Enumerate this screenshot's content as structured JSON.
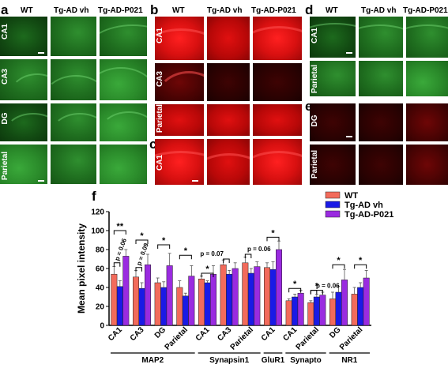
{
  "panels": {
    "a": {
      "label": "a",
      "columns": [
        "WT",
        "Tg-AD vh",
        "Tg-AD-P021"
      ],
      "rows": [
        "CA1",
        "CA3",
        "DG",
        "Parietal"
      ]
    },
    "b": {
      "label": "b",
      "columns": [
        "WT",
        "Tg-AD vh",
        "Tg-AD-P021"
      ],
      "rows": [
        "CA1",
        "CA3",
        "Parietal"
      ]
    },
    "c": {
      "label": "c",
      "rows": [
        "CA1"
      ]
    },
    "d": {
      "label": "d",
      "columns": [
        "WT",
        "Tg-AD vh",
        "Tg-AD-P021"
      ],
      "rows": [
        "CA1",
        "Parietal"
      ]
    },
    "e": {
      "label": "e",
      "rows": [
        "DG",
        "Parietal"
      ]
    },
    "f": {
      "label": "f"
    }
  },
  "colors": {
    "wt": "#f26b5b",
    "vh": "#1a1ae6",
    "p021": "#9a2be0"
  },
  "chart_data": {
    "type": "bar",
    "ylabel": "Mean pixel intensity",
    "ylim": [
      0,
      120
    ],
    "yticks": [
      0,
      20,
      40,
      60,
      80,
      100,
      120
    ],
    "legend": [
      "WT",
      "Tg-AD vh",
      "Tg-AD-P021"
    ],
    "legend_position": "top-right",
    "categories": [
      "CA1",
      "CA3",
      "DG",
      "Parietal",
      "CA1",
      "CA3",
      "Parietal",
      "CA1",
      "CA1",
      "Parietal",
      "DG",
      "Parietal"
    ],
    "groups": [
      {
        "label": "MAP2",
        "start": 0,
        "end": 3
      },
      {
        "label": "Synapsin1",
        "start": 4,
        "end": 6
      },
      {
        "label": "GluR1",
        "start": 7,
        "end": 7
      },
      {
        "label": "Synapto",
        "start": 8,
        "end": 9
      },
      {
        "label": "NR1",
        "start": 10,
        "end": 11
      }
    ],
    "series": [
      {
        "name": "WT",
        "values": [
          54,
          51,
          45,
          40,
          49,
          64,
          66,
          61,
          26,
          24,
          28,
          33
        ],
        "errors": [
          8,
          7,
          5,
          7,
          3,
          5,
          6,
          5,
          2,
          2,
          7,
          7
        ]
      },
      {
        "name": "Tg-AD vh",
        "values": [
          41,
          39,
          40,
          31,
          45,
          54,
          55,
          59,
          30,
          30,
          35,
          40
        ],
        "errors": [
          6,
          6,
          6,
          3,
          2,
          4,
          5,
          8,
          3,
          3,
          6,
          5
        ]
      },
      {
        "name": "Tg-AD-P021",
        "values": [
          73,
          64,
          63,
          52,
          54,
          60,
          62,
          80,
          34,
          32,
          48,
          50
        ],
        "errors": [
          7,
          11,
          13,
          11,
          9,
          6,
          5,
          9,
          3,
          3,
          11,
          8
        ]
      }
    ],
    "annotations": [
      "**",
      "*",
      "p = 0.06",
      "*",
      "p = 0.09",
      "*",
      "*",
      "*",
      "p = 0.07",
      "p = 0.06",
      "*",
      "*",
      "p = 0.06",
      "*",
      "*"
    ]
  }
}
